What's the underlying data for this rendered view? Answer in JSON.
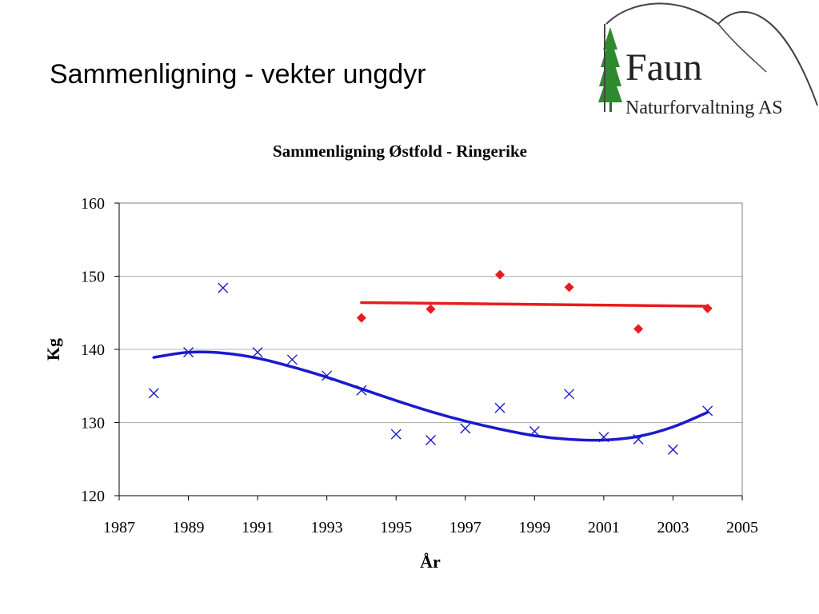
{
  "slide": {
    "title": "Sammenligning - vekter ungdyr"
  },
  "logo": {
    "name": "Faun",
    "subtitle": "Naturforvaltning AS"
  },
  "chart_data": {
    "type": "scatter",
    "title": "Sammenligning Østfold - Ringerike",
    "xlabel": "År",
    "ylabel": "Kg",
    "xlim": [
      1987,
      2005
    ],
    "ylim": [
      120,
      160
    ],
    "x_ticks": [
      1987,
      1989,
      1991,
      1993,
      1995,
      1997,
      1999,
      2001,
      2003,
      2005
    ],
    "y_ticks": [
      120,
      130,
      140,
      150,
      160
    ],
    "grid": "horizontal",
    "legend": "none",
    "series": [
      {
        "marker": "x",
        "color": "#1a1acc",
        "x": [
          1988,
          1989,
          1990,
          1991,
          1992,
          1993,
          1994,
          1995,
          1996,
          1997,
          1998,
          1999,
          2000,
          2001,
          2002,
          2003,
          2004
        ],
        "values": [
          134.0,
          139.6,
          148.4,
          139.6,
          138.6,
          136.4,
          134.4,
          128.4,
          127.6,
          129.2,
          132.0,
          128.8,
          133.9,
          128.0,
          127.7,
          126.3,
          131.6
        ],
        "trendline": {
          "type": "polynomial",
          "color": "#1a1acc",
          "x": [
            1988,
            1989,
            1990,
            1991,
            1992,
            1993,
            1994,
            1995,
            1996,
            1997,
            1998,
            1999,
            2000,
            2001,
            2002,
            2003,
            2004
          ],
          "values": [
            138.9,
            139.6,
            139.5,
            138.8,
            137.6,
            136.2,
            134.6,
            133.0,
            131.5,
            130.2,
            129.1,
            128.2,
            127.7,
            127.6,
            128.1,
            129.4,
            131.4
          ]
        }
      },
      {
        "marker": "diamond",
        "color": "#e81c1c",
        "x": [
          1994,
          1996,
          1998,
          2000,
          2002,
          2004
        ],
        "values": [
          144.3,
          145.5,
          150.2,
          148.5,
          142.8,
          145.6
        ],
        "trendline": {
          "type": "linear",
          "color": "#e81c1c",
          "x": [
            1994,
            2004
          ],
          "values": [
            146.4,
            145.9
          ]
        }
      }
    ]
  }
}
